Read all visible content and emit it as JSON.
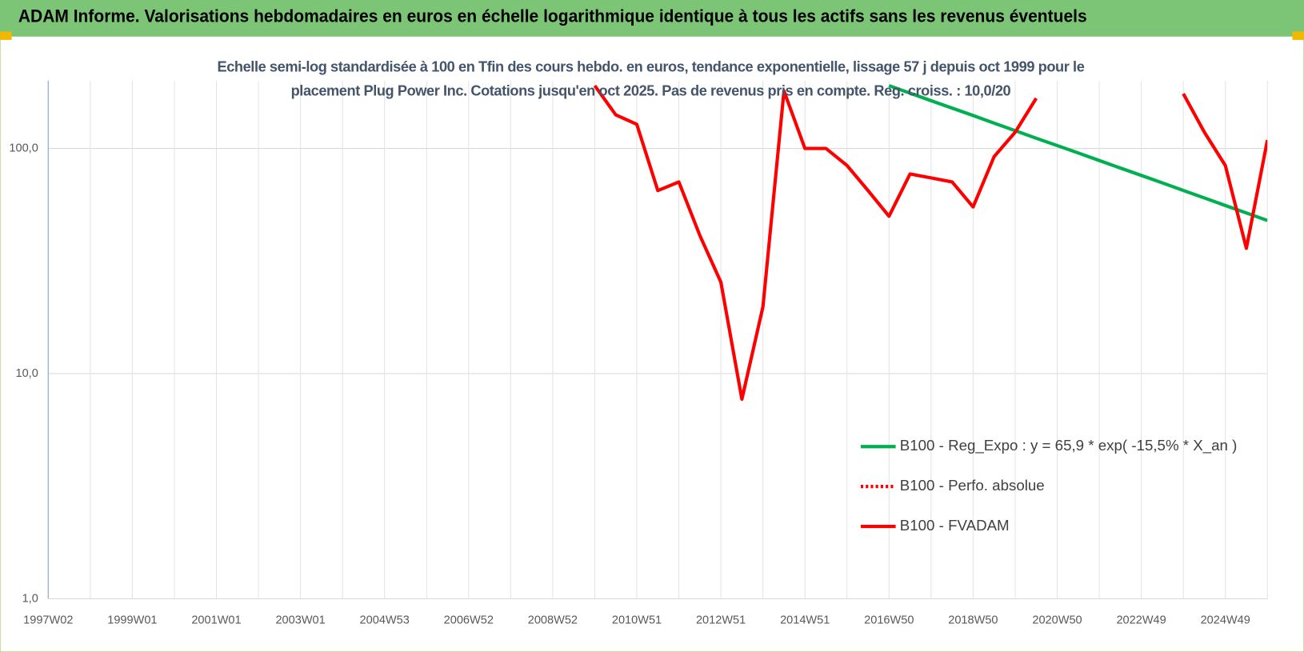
{
  "chart_data": {
    "type": "line",
    "title": "ADAM Informe. Valorisations hebdomadaires en euros en échelle logarithmique identique à tous les actifs sans les revenus éventuels",
    "subtitle": "Echelle semi-log standardisée à 100 en Tfin des cours hebdo. en euros, tendance exponentielle, lissage 57 j depuis oct 1999 pour le placement Plug Power Inc. Cotations jusqu'en oct 2025. Pas de revenus pris en compte. Reg. croiss. : 10,0/20",
    "log_scale": true,
    "grid": true,
    "legend": "right",
    "ylim": [
      1,
      200
    ],
    "yticks": [
      {
        "value": 1,
        "label": "1,0"
      },
      {
        "value": 10,
        "label": "10,0"
      },
      {
        "value": 100,
        "label": "100,0"
      }
    ],
    "categories": [
      "1997W02",
      null,
      null,
      null,
      "1999W01",
      null,
      null,
      null,
      "2001W01",
      null,
      null,
      null,
      "2003W01",
      null,
      null,
      null,
      "2004W53",
      null,
      null,
      null,
      "2006W52",
      null,
      null,
      null,
      "2008W52",
      null,
      null,
      null,
      "2010W51",
      null,
      null,
      null,
      "2012W51",
      null,
      null,
      null,
      "2014W51",
      null,
      null,
      null,
      "2016W50",
      null,
      null,
      null,
      "2018W50",
      null,
      null,
      null,
      "2020W50",
      null,
      null,
      null,
      "2022W49",
      null,
      null,
      null,
      "2024W49",
      null,
      null
    ],
    "series": [
      {
        "name": "B100 - Reg_Expo : y = 65,9 * exp( -15,5% *  X_an )",
        "color": "#00b050",
        "dash": "solid",
        "values": [
          null,
          null,
          null,
          null,
          null,
          null,
          null,
          null,
          null,
          null,
          null,
          null,
          null,
          null,
          null,
          null,
          null,
          null,
          null,
          null,
          null,
          null,
          null,
          null,
          null,
          null,
          null,
          null,
          null,
          null,
          null,
          null,
          null,
          null,
          null,
          null,
          null,
          null,
          null,
          null,
          190,
          176,
          163,
          151,
          140,
          129.5,
          120,
          111,
          103,
          95.5,
          88.4,
          81.9,
          75.9,
          70.3,
          65.1,
          60.3,
          55.8,
          51.7,
          47.9
        ]
      },
      {
        "name": "B100 - Perfo. absolue",
        "color": "#ff0000",
        "dash": "dotted",
        "values": [
          null,
          null,
          null,
          null,
          null,
          null,
          null,
          null,
          null,
          null,
          null,
          null,
          null,
          null,
          null,
          null,
          null,
          null,
          null,
          null,
          null,
          null,
          null,
          null,
          null,
          null,
          null,
          null,
          null,
          null,
          null,
          null,
          null,
          null,
          null,
          null,
          null,
          null,
          null,
          null,
          null,
          null,
          null,
          null,
          null,
          null,
          null,
          null,
          null,
          null,
          null,
          null,
          null,
          null,
          null,
          null,
          null,
          null,
          null
        ]
      },
      {
        "name": "B100 - FVADAM",
        "color": "#ff0000",
        "dash": "solid",
        "values": [
          null,
          null,
          null,
          null,
          null,
          null,
          null,
          null,
          null,
          null,
          null,
          null,
          null,
          null,
          null,
          null,
          null,
          null,
          null,
          null,
          null,
          null,
          null,
          null,
          null,
          null,
          190,
          141,
          128,
          65,
          71,
          41,
          25.5,
          7.7,
          19.8,
          180,
          100,
          100,
          84,
          65,
          50,
          77,
          74,
          71,
          55,
          92,
          118,
          167,
          null,
          null,
          null,
          null,
          null,
          null,
          175,
          118,
          84,
          36,
          109
        ]
      }
    ]
  }
}
